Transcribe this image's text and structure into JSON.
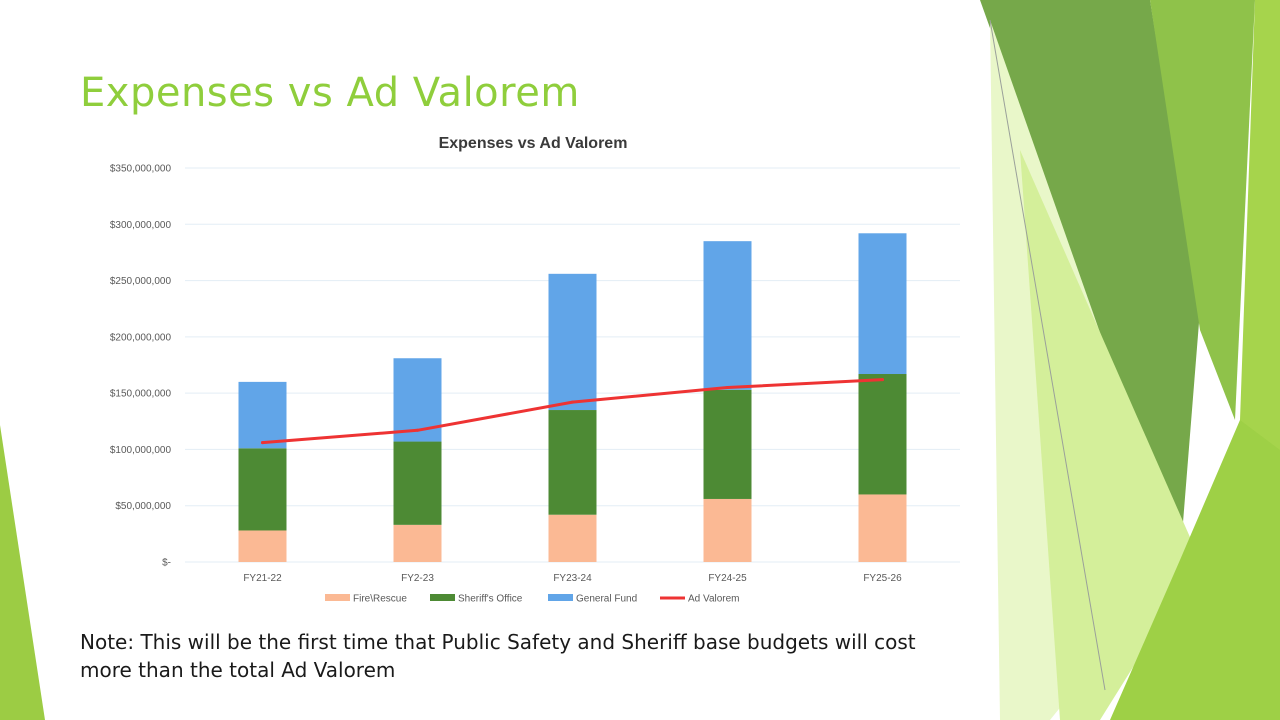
{
  "slide": {
    "title": "Expenses vs Ad Valorem",
    "note": "Note:  This will be the first time that Public Safety and Sheriff base budgets will cost more than the total Ad Valorem"
  },
  "colors": {
    "title": "#8fce3c",
    "fire": "#fbb994",
    "sheriff": "#4d8a34",
    "general": "#61a5e8",
    "ad_valorem": "#ee3333",
    "grid": "#e3edf5",
    "axis_text": "#595959"
  },
  "chart_data": {
    "type": "bar",
    "stacked": true,
    "title": "Expenses vs Ad Valorem",
    "xlabel": "",
    "ylabel": "",
    "categories": [
      "FY21-22",
      "FY2-23",
      "FY23-24",
      "FY24-25",
      "FY25-26"
    ],
    "ylim": [
      0,
      350000000
    ],
    "yticks": [
      {
        "value": 0,
        "label": "$-"
      },
      {
        "value": 50000000,
        "label": "$50,000,000"
      },
      {
        "value": 100000000,
        "label": "$100,000,000"
      },
      {
        "value": 150000000,
        "label": "$150,000,000"
      },
      {
        "value": 200000000,
        "label": "$200,000,000"
      },
      {
        "value": 250000000,
        "label": "$250,000,000"
      },
      {
        "value": 300000000,
        "label": "$300,000,000"
      },
      {
        "value": 350000000,
        "label": "$350,000,000"
      }
    ],
    "grid": true,
    "legend_position": "bottom",
    "series": [
      {
        "name": "Fire\\Rescue",
        "kind": "bar",
        "color": "#fbb994",
        "values": [
          28000000,
          33000000,
          42000000,
          56000000,
          60000000
        ]
      },
      {
        "name": "Sheriff's Office",
        "kind": "bar",
        "color": "#4d8a34",
        "values": [
          73000000,
          74000000,
          93000000,
          97000000,
          107000000
        ]
      },
      {
        "name": "General Fund",
        "kind": "bar",
        "color": "#61a5e8",
        "values": [
          59000000,
          74000000,
          121000000,
          132000000,
          125000000
        ]
      },
      {
        "name": "Ad Valorem",
        "kind": "line",
        "color": "#ee3333",
        "values": [
          106000000,
          117000000,
          142000000,
          155000000,
          162000000
        ]
      }
    ]
  }
}
